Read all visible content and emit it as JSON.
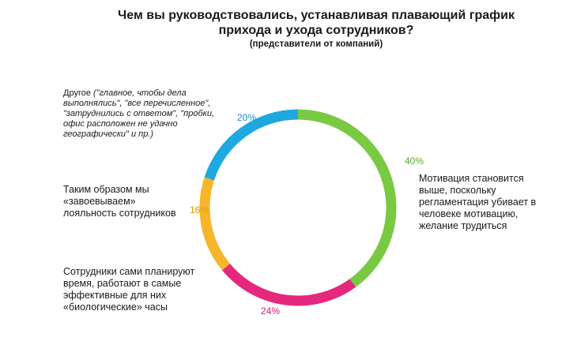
{
  "title": "Чем вы руководствовались, устанавливая плавающий график прихода и ухода сотрудников?",
  "subtitle": "(представители от компаний)",
  "chart_data": {
    "type": "pie",
    "variant": "donut",
    "categories": [
      "Мотивация становится выше, поскольку регламентация убивает в человеке мотивацию, желание трудиться",
      "Сотрудники сами планируют время, работают в самые эффективные для них «биологические» часы",
      "Таким образом мы «завоевываем» лояльность сотрудников",
      "Другое (\"главное, чтобы дела выполнялись\", \"все перечисленное\", \"затруднились с ответом\", \"пробки, офис расположен не удачно географически\" и пр.)"
    ],
    "values": [
      40,
      24,
      16,
      20
    ],
    "labels": [
      "40%",
      "24%",
      "16%",
      "20%"
    ],
    "colors": [
      "#79c943",
      "#e5277d",
      "#f7b52b",
      "#1fa8e0"
    ]
  },
  "callouts": {
    "motivation_prefix": "Мотивация становится выше, поскольку регламентация убивает в человеке мотивацию, желание трудиться",
    "self_plan": "Сотрудники сами планируют время, работают в самые эффективные для них «биологические» часы",
    "loyalty": "Таким образом мы «завоевываем» лояльность сотрудников",
    "other_head": "Другое ",
    "other_rest": "(\"главное, чтобы дела выполнялись\", \"все перечисленное\", \"затруднились с ответом\", \"пробки, офис расположен не удачно географически\" и пр.)"
  }
}
